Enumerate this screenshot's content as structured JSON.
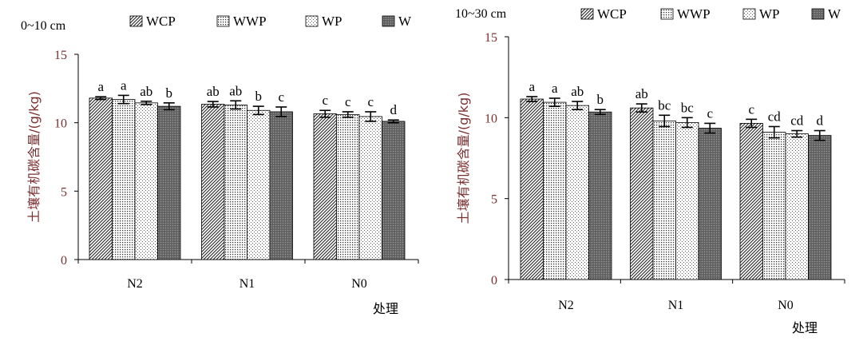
{
  "legend_labels": [
    "WCP",
    "WWP",
    "WP",
    "W"
  ],
  "chart_data": [
    {
      "type": "bar",
      "title": "0~10 cm",
      "xlabel": "处理",
      "ylabel": "土壤有机碳含量/(g/kg)",
      "categories": [
        "N2",
        "N1",
        "N0"
      ],
      "ylim": [
        0,
        15
      ],
      "yticks": [
        0,
        5,
        10,
        15
      ],
      "grid": false,
      "legend_position": "top",
      "series": [
        {
          "name": "WCP",
          "values": [
            11.8,
            11.35,
            10.65
          ],
          "errors": [
            0.1,
            0.2,
            0.25
          ],
          "labels": [
            "a",
            "ab",
            "c"
          ]
        },
        {
          "name": "WWP",
          "values": [
            11.7,
            11.3,
            10.6
          ],
          "errors": [
            0.3,
            0.3,
            0.2
          ],
          "labels": [
            "a",
            "ab",
            "c"
          ]
        },
        {
          "name": "WP",
          "values": [
            11.45,
            10.9,
            10.45
          ],
          "errors": [
            0.12,
            0.3,
            0.35
          ],
          "labels": [
            "ab",
            "b",
            "c"
          ]
        },
        {
          "name": "W",
          "values": [
            11.2,
            10.8,
            10.1
          ],
          "errors": [
            0.25,
            0.35,
            0.1
          ],
          "labels": [
            "b",
            "c",
            "d"
          ]
        }
      ]
    },
    {
      "type": "bar",
      "title": "10~30 cm",
      "xlabel": "处理",
      "ylabel": "土壤有机碳含量/(g/kg)",
      "categories": [
        "N2",
        "N1",
        "N0"
      ],
      "ylim": [
        0,
        15
      ],
      "yticks": [
        0,
        5,
        10,
        15
      ],
      "grid": false,
      "legend_position": "top",
      "series": [
        {
          "name": "WCP",
          "values": [
            11.15,
            10.6,
            9.65
          ],
          "errors": [
            0.15,
            0.25,
            0.25
          ],
          "labels": [
            "a",
            "ab",
            "c"
          ]
        },
        {
          "name": "WWP",
          "values": [
            10.95,
            9.8,
            9.1
          ],
          "errors": [
            0.25,
            0.35,
            0.35
          ],
          "labels": [
            "a",
            "bc",
            "cd"
          ]
        },
        {
          "name": "WP",
          "values": [
            10.75,
            9.7,
            9.0
          ],
          "errors": [
            0.25,
            0.3,
            0.2
          ],
          "labels": [
            "ab",
            "bc",
            "cd"
          ]
        },
        {
          "name": "W",
          "values": [
            10.35,
            9.35,
            8.9
          ],
          "errors": [
            0.15,
            0.3,
            0.3
          ],
          "labels": [
            "b",
            "c",
            "d"
          ]
        }
      ]
    }
  ]
}
